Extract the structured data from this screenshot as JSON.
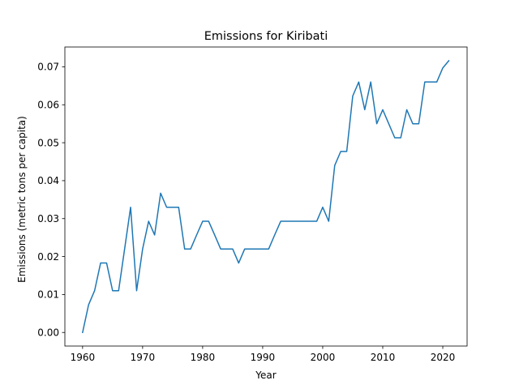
{
  "chart_data": {
    "type": "line",
    "title": "Emissions for Kiribati",
    "xlabel": "Year",
    "ylabel": "Emissions (metric tons per capita)",
    "xlim": [
      1957.05,
      2024.05
    ],
    "ylim": [
      -0.00358,
      0.07522
    ],
    "xticks": [
      1960,
      1970,
      1980,
      1990,
      2000,
      2010,
      2020
    ],
    "yticks": [
      0.0,
      0.01,
      0.02,
      0.03,
      0.04,
      0.05,
      0.06,
      0.07
    ],
    "ytick_labels": [
      "0.00",
      "0.01",
      "0.02",
      "0.03",
      "0.04",
      "0.05",
      "0.06",
      "0.07"
    ],
    "xtick_labels": [
      "1960",
      "1970",
      "1980",
      "1990",
      "2000",
      "2010",
      "2020"
    ],
    "grid": false,
    "line_color": "#1f77b4",
    "series": [
      {
        "x": [
          1960,
          1961,
          1962,
          1963,
          1964,
          1965,
          1966,
          1967,
          1968,
          1969,
          1970,
          1971,
          1972,
          1973,
          1974,
          1975,
          1976,
          1977,
          1978,
          1979,
          1980,
          1981,
          1982,
          1983,
          1984,
          1985,
          1986,
          1987,
          1988,
          1989,
          1990,
          1991,
          1992,
          1993,
          1994,
          1995,
          1996,
          1997,
          1998,
          1999,
          2000,
          2001,
          2002,
          2003,
          2004,
          2005,
          2006,
          2007,
          2008,
          2009,
          2010,
          2011,
          2012,
          2013,
          2014,
          2015,
          2016,
          2017,
          2018,
          2019,
          2020,
          2021
        ],
        "y": [
          0.0,
          0.0073,
          0.011,
          0.0183,
          0.0183,
          0.011,
          0.011,
          0.022,
          0.033,
          0.011,
          0.022,
          0.0293,
          0.0257,
          0.0367,
          0.033,
          0.033,
          0.033,
          0.022,
          0.022,
          0.0257,
          0.0293,
          0.0293,
          0.0257,
          0.022,
          0.022,
          0.022,
          0.0183,
          0.022,
          0.022,
          0.022,
          0.022,
          0.022,
          0.0257,
          0.0293,
          0.0293,
          0.0293,
          0.0293,
          0.0293,
          0.0293,
          0.0293,
          0.033,
          0.0293,
          0.044,
          0.0477,
          0.0477,
          0.0623,
          0.066,
          0.0587,
          0.066,
          0.055,
          0.0587,
          0.055,
          0.0513,
          0.0513,
          0.0587,
          0.055,
          0.055,
          0.066,
          0.066,
          0.066,
          0.0697,
          0.0716
        ]
      }
    ]
  }
}
